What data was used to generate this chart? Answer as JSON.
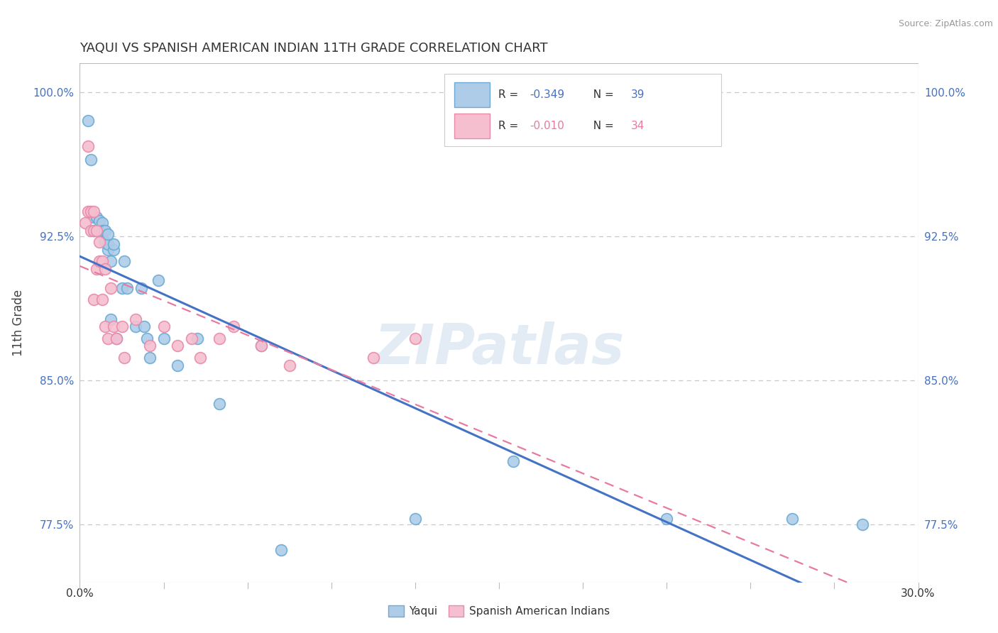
{
  "title": "YAQUI VS SPANISH AMERICAN INDIAN 11TH GRADE CORRELATION CHART",
  "source": "Source: ZipAtlas.com",
  "ylabel": "11th Grade",
  "xmin": 0.0,
  "xmax": 0.3,
  "ymin": 0.745,
  "ymax": 1.015,
  "yticks": [
    0.775,
    0.85,
    0.925,
    1.0
  ],
  "ytick_labels": [
    "77.5%",
    "85.0%",
    "92.5%",
    "100.0%"
  ],
  "xtick_left": "0.0%",
  "xtick_right": "30.0%",
  "color_yaqui_fill": "#aecce8",
  "color_yaqui_edge": "#6aaad4",
  "color_spanish_fill": "#f5bfd0",
  "color_spanish_edge": "#e88aaa",
  "line_color_yaqui": "#4472c4",
  "line_color_spanish": "#e87aa0",
  "legend_r1": "R = ",
  "legend_rv1": "-0.349",
  "legend_n1": "N = ",
  "legend_nv1": "39",
  "legend_r2": "R = ",
  "legend_rv2": "-0.010",
  "legend_n2": "N = ",
  "legend_nv2": "34",
  "legend_color_val": "#4472c4",
  "legend_color_val2": "#e87aa0",
  "watermark": "ZIPatlas",
  "bottom_legend_yaqui": "Yaqui",
  "bottom_legend_spanish": "Spanish American Indians",
  "yaqui_x": [
    0.003,
    0.004,
    0.005,
    0.005,
    0.006,
    0.007,
    0.007,
    0.008,
    0.008,
    0.009,
    0.009,
    0.01,
    0.01,
    0.01,
    0.011,
    0.011,
    0.012,
    0.012,
    0.013,
    0.015,
    0.016,
    0.017,
    0.02,
    0.022,
    0.023,
    0.024,
    0.025,
    0.028,
    0.03,
    0.035,
    0.042,
    0.05,
    0.065,
    0.072,
    0.12,
    0.155,
    0.21,
    0.255,
    0.28
  ],
  "yaqui_y": [
    0.985,
    0.965,
    0.935,
    0.928,
    0.935,
    0.928,
    0.933,
    0.932,
    0.928,
    0.922,
    0.928,
    0.918,
    0.921,
    0.926,
    0.912,
    0.882,
    0.918,
    0.921,
    0.872,
    0.898,
    0.912,
    0.898,
    0.878,
    0.898,
    0.878,
    0.872,
    0.862,
    0.902,
    0.872,
    0.858,
    0.872,
    0.838,
    0.868,
    0.762,
    0.778,
    0.808,
    0.778,
    0.778,
    0.775
  ],
  "spanish_x": [
    0.002,
    0.003,
    0.003,
    0.004,
    0.004,
    0.005,
    0.005,
    0.005,
    0.006,
    0.006,
    0.007,
    0.007,
    0.008,
    0.008,
    0.009,
    0.009,
    0.01,
    0.011,
    0.012,
    0.013,
    0.015,
    0.016,
    0.02,
    0.025,
    0.03,
    0.035,
    0.04,
    0.043,
    0.05,
    0.055,
    0.065,
    0.075,
    0.105,
    0.12
  ],
  "spanish_y": [
    0.932,
    0.972,
    0.938,
    0.938,
    0.928,
    0.938,
    0.928,
    0.892,
    0.928,
    0.908,
    0.922,
    0.912,
    0.912,
    0.892,
    0.908,
    0.878,
    0.872,
    0.898,
    0.878,
    0.872,
    0.878,
    0.862,
    0.882,
    0.868,
    0.878,
    0.868,
    0.872,
    0.862,
    0.872,
    0.878,
    0.868,
    0.858,
    0.862,
    0.872
  ]
}
